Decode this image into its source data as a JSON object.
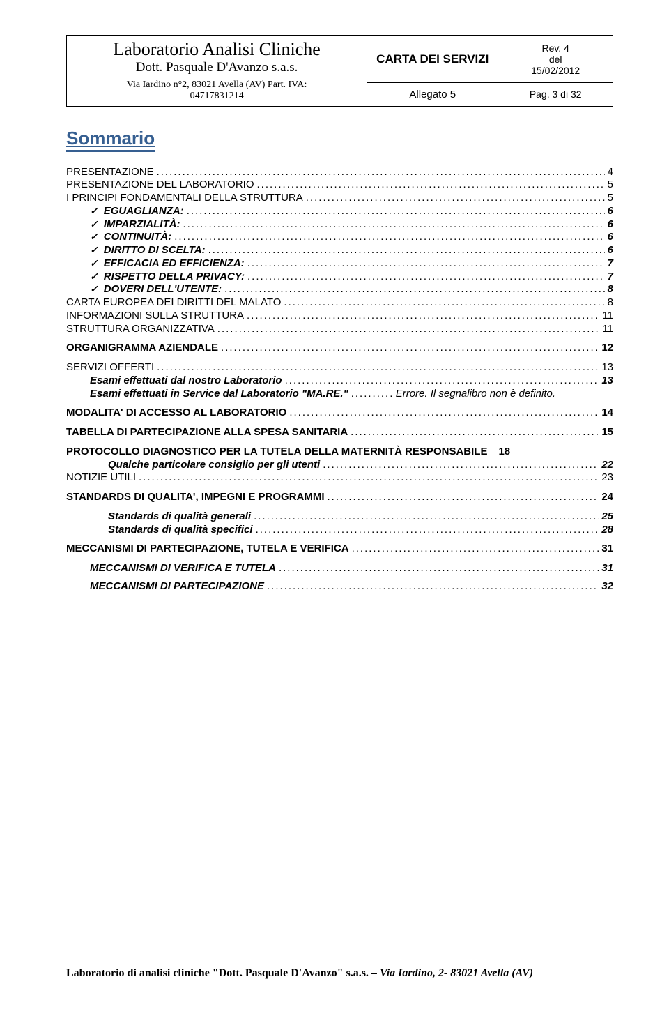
{
  "header": {
    "lab_title": "Laboratorio Analisi Cliniche",
    "lab_sub": "Dott. Pasquale D'Avanzo s.a.s.",
    "lab_addr": "Via Iardino n°2, 83021 Avella (AV)  Part. IVA:",
    "lab_piva": "04717831214",
    "doc_title": "CARTA DEI SERVIZI",
    "rev": "Rev. 4",
    "del": "del",
    "date": "15/02/2012",
    "allegato": "Allegato 5",
    "page": "Pag. 3 di 32"
  },
  "sommario_label": "Sommario",
  "toc": [
    {
      "text": "PRESENTAZIONE",
      "page": "4",
      "indent": 0,
      "bold": false,
      "italic": false,
      "check": false
    },
    {
      "text": "PRESENTAZIONE DEL LABORATORIO",
      "page": "5",
      "indent": 0,
      "bold": false,
      "italic": false,
      "check": false
    },
    {
      "text": "I PRINCIPI FONDAMENTALI DELLA STRUTTURA",
      "page": "5",
      "indent": 0,
      "bold": false,
      "italic": false,
      "check": false
    },
    {
      "text": "EGUAGLIANZA:",
      "page": "6",
      "indent": 1,
      "bold": true,
      "italic": true,
      "check": true
    },
    {
      "text": "IMPARZIALITÀ:",
      "page": "6",
      "indent": 1,
      "bold": true,
      "italic": true,
      "check": true
    },
    {
      "text": "CONTINUITÀ:",
      "page": "6",
      "indent": 1,
      "bold": true,
      "italic": true,
      "check": true
    },
    {
      "text": "DIRITTO DI SCELTA:",
      "page": "6",
      "indent": 1,
      "bold": true,
      "italic": true,
      "check": true
    },
    {
      "text": "EFFICACIA ED EFFICIENZA:",
      "page": "7",
      "indent": 1,
      "bold": true,
      "italic": true,
      "check": true
    },
    {
      "text": "RISPETTO DELLA PRIVACY:",
      "page": "7",
      "indent": 1,
      "bold": true,
      "italic": true,
      "check": true
    },
    {
      "text": "DOVERI DELL'UTENTE:",
      "page": "8",
      "indent": 1,
      "bold": true,
      "italic": true,
      "check": true
    },
    {
      "text": "CARTA EUROPEA DEI DIRITTI DEL MALATO",
      "page": "8",
      "indent": 0,
      "bold": false,
      "italic": false,
      "check": false
    },
    {
      "text": "INFORMAZIONI SULLA STRUTTURA",
      "page": "11",
      "indent": 0,
      "bold": false,
      "italic": false,
      "check": false
    },
    {
      "text": "STRUTTURA ORGANIZZATIVA",
      "page": "11",
      "indent": 0,
      "bold": false,
      "italic": false,
      "check": false
    },
    {
      "text": "ORGANIGRAMMA AZIENDALE",
      "page": "12",
      "indent": 0,
      "bold": true,
      "italic": false,
      "check": false
    },
    {
      "text": "SERVIZI OFFERTI",
      "page": "13",
      "indent": 0,
      "bold": false,
      "italic": false,
      "check": false
    },
    {
      "text": "Esami effettuati dal nostro Laboratorio",
      "page": "13",
      "indent": 1,
      "bold": true,
      "italic": true,
      "check": false
    },
    {
      "text": "Esami effettuati in Service dal Laboratorio \"MA.RE.\"",
      "page": "Errore. Il segnalibro non è definito.",
      "indent": 1,
      "bold": true,
      "italic": true,
      "check": false,
      "pageItalic": true,
      "shortDots": true
    },
    {
      "text": "MODALITA' DI ACCESSO AL LABORATORIO",
      "page": "14",
      "indent": 0,
      "bold": true,
      "italic": false,
      "check": false
    },
    {
      "text": "TABELLA DI PARTECIPAZIONE ALLA SPESA SANITARIA",
      "page": "15",
      "indent": 0,
      "bold": true,
      "italic": false,
      "check": false
    },
    {
      "text": "PROTOCOLLO DIAGNOSTICO PER LA TUTELA DELLA MATERNITÀ RESPONSABILE",
      "page": "18",
      "indent": 0,
      "bold": true,
      "italic": false,
      "check": false,
      "noDots": true
    },
    {
      "text": "Qualche particolare consiglio per gli utenti",
      "page": "22",
      "indent": 2,
      "bold": true,
      "italic": true,
      "check": false
    },
    {
      "text": "NOTIZIE UTILI",
      "page": "23",
      "indent": 0,
      "bold": false,
      "italic": false,
      "check": false
    },
    {
      "text": "STANDARDS DI QUALITA', IMPEGNI E PROGRAMMI",
      "page": "24",
      "indent": 0,
      "bold": true,
      "italic": false,
      "check": false
    },
    {
      "text": "Standards di qualità generali",
      "page": "25",
      "indent": 2,
      "bold": true,
      "italic": true,
      "check": false
    },
    {
      "text": "Standards di qualità specifici",
      "page": "28",
      "indent": 2,
      "bold": true,
      "italic": true,
      "check": false
    },
    {
      "text": "MECCANISMI DI PARTECIPAZIONE, TUTELA E VERIFICA",
      "page": "31",
      "indent": 0,
      "bold": true,
      "italic": false,
      "check": false
    },
    {
      "text": "MECCANISMI DI VERIFICA E TUTELA",
      "page": "31",
      "indent": 1,
      "bold": true,
      "italic": true,
      "check": false
    },
    {
      "text": "MECCANISMI DI PARTECIPAZIONE",
      "page": "32",
      "indent": 1,
      "bold": true,
      "italic": true,
      "check": false
    }
  ],
  "footer": {
    "p1": "Laboratorio di analisi cliniche \"Dott. Pasquale D'Avanzo\" s.a.s. ",
    "p2": "– Via Iardino, 2- 83021 Avella (AV)"
  },
  "colors": {
    "heading": "#365f91",
    "text": "#000000",
    "border": "#000000",
    "background": "#ffffff"
  }
}
